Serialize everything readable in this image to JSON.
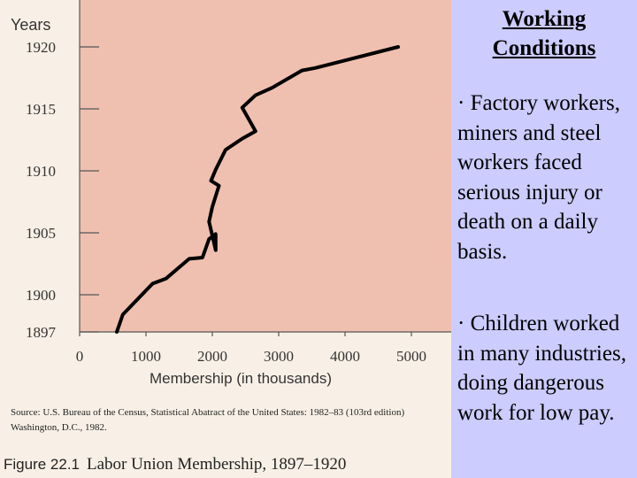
{
  "figure": {
    "source_note": "Source: U.S. Bureau of the Census, Statistical Abatract of the United States: 1982–83 (103rd edition) Washington, D.C., 1982.",
    "caption_number": "Figure 22.1",
    "caption_text": "Labor Union Membership, 1897–1920"
  },
  "chart_data": {
    "type": "line",
    "title": "",
    "xlabel": "Membership (in thousands)",
    "ylabel": "Years",
    "xlim": [
      0,
      5000
    ],
    "ylim": [
      1897,
      1921
    ],
    "x_ticks": [
      0,
      1000,
      2000,
      3000,
      4000,
      5000
    ],
    "y_ticks": [
      1897,
      1900,
      1905,
      1910,
      1915,
      1920
    ],
    "grid": false,
    "colors": {
      "plot_bg": "#efc0b0",
      "line": "#000000"
    },
    "series": [
      {
        "x": [
          560,
          650,
          1100,
          1300,
          1650,
          1850,
          1950,
          2050,
          2050,
          1950,
          2000,
          2100,
          1980,
          2050,
          2200,
          2450,
          2650,
          2450,
          2650,
          2900,
          3350,
          3550,
          4800
        ],
        "y": [
          1897,
          1898.4,
          1900.9,
          1901.3,
          1902.9,
          1903.0,
          1904.5,
          1904.9,
          1903.6,
          1905.9,
          1907.1,
          1908.8,
          1909.2,
          1910.1,
          1911.7,
          1912.6,
          1913.2,
          1915.1,
          1916.1,
          1916.7,
          1918.1,
          1918.3,
          1920
        ]
      }
    ]
  },
  "panel": {
    "title": "Working Conditions",
    "bullets": [
      "· Factory workers, miners and steel workers faced serious injury or death on a daily basis.",
      "· Children worked in many industries, doing dangerous work for low pay."
    ]
  }
}
